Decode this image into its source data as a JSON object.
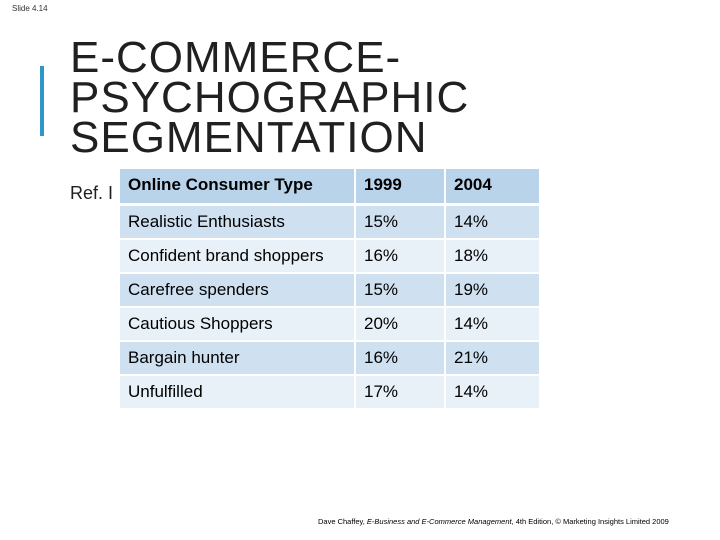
{
  "slide_number": "Slide 4.14",
  "title_lines": [
    "E-COMMERCE-",
    "PSYCHOGRAPHIC",
    "SEGMENTATION"
  ],
  "ref_text": "Ref. I",
  "table": {
    "headers": [
      "Online Consumer Type",
      "1999",
      "2004"
    ],
    "rows": [
      [
        "Realistic Enthusiasts",
        "15%",
        "14%"
      ],
      [
        "Confident brand shoppers",
        "16%",
        "18%"
      ],
      [
        "Carefree spenders",
        "15%",
        "19%"
      ],
      [
        "Cautious Shoppers",
        "20%",
        "14%"
      ],
      [
        "Bargain hunter",
        "16%",
        "21%"
      ],
      [
        "Unfulfilled",
        "17%",
        "14%"
      ]
    ]
  },
  "footer": {
    "author": "Dave Chaffey, ",
    "book_title": "E-Business and E-Commerce Management",
    "rest": ", 4th Edition, © Marketing Insights Limited 2009"
  },
  "colors": {
    "accent": "#2f96c8",
    "header_bg": "#b8d3ea",
    "row_odd": "#cfe1f1",
    "row_even": "#e8f0f8"
  }
}
